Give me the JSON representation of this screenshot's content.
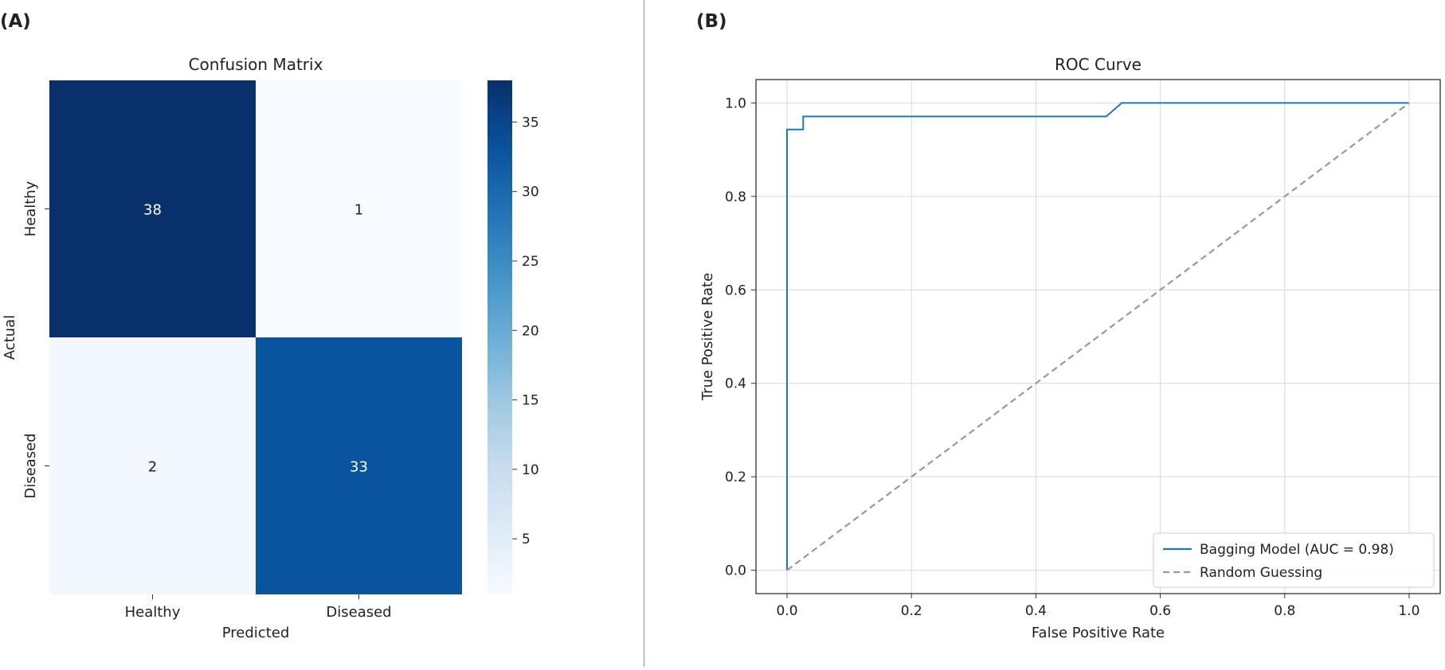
{
  "panels": [
    {
      "label": "(A)"
    },
    {
      "label": "(B)"
    }
  ],
  "chart_data": [
    {
      "type": "heatmap",
      "title": "Confusion Matrix",
      "xlabel": "Predicted",
      "ylabel": "Actual",
      "x_categories": [
        "Healthy",
        "Diseased"
      ],
      "y_categories": [
        "Healthy",
        "Diseased"
      ],
      "values": [
        [
          38,
          1
        ],
        [
          2,
          33
        ]
      ],
      "colorscale": "Blues",
      "colorbar": {
        "min": 1,
        "max": 38,
        "ticks": [
          5,
          10,
          15,
          20,
          25,
          30,
          35
        ]
      }
    },
    {
      "type": "line",
      "title": "ROC Curve",
      "xlabel": "False Positive Rate",
      "ylabel": "True Positive Rate",
      "xlim": [
        -0.05,
        1.05
      ],
      "ylim": [
        -0.05,
        1.05
      ],
      "xticks": [
        "0.0",
        "0.2",
        "0.4",
        "0.6",
        "0.8",
        "1.0"
      ],
      "yticks": [
        "0.0",
        "0.2",
        "0.4",
        "0.6",
        "0.8",
        "1.0"
      ],
      "grid": true,
      "legend_position": "lower-right",
      "series": [
        {
          "name": "Bagging Model (AUC = 0.98)",
          "color": "#1f77b4",
          "style": "solid",
          "x": [
            0,
            0,
            0.026,
            0.026,
            0.513,
            0.538,
            1.0
          ],
          "y": [
            0,
            0.943,
            0.943,
            0.971,
            0.971,
            1.0,
            1.0
          ]
        },
        {
          "name": "Random Guessing",
          "color": "#999999",
          "style": "dashed",
          "x": [
            0,
            1
          ],
          "y": [
            0,
            1
          ]
        }
      ]
    }
  ]
}
